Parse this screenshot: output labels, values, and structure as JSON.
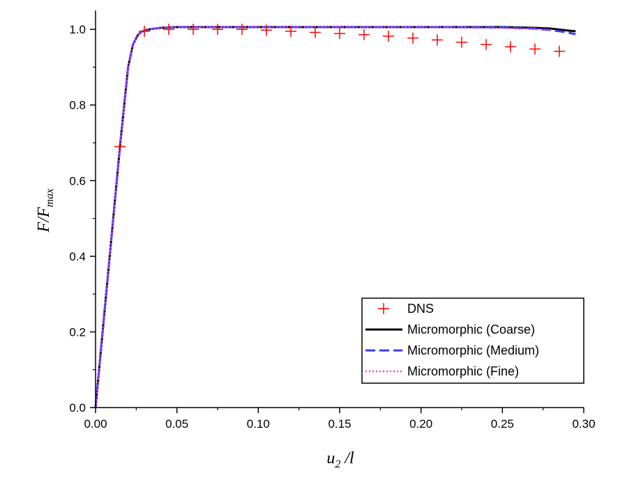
{
  "chart_data": {
    "type": "line",
    "title": "",
    "xlabel": {
      "main": "u",
      "sub": "2",
      "rest": " /l"
    },
    "ylabel": {
      "main": "F/F",
      "sub": "max"
    },
    "xlim": [
      0.0,
      0.3
    ],
    "ylim": [
      0.0,
      1.05
    ],
    "xticks": [
      "0.00",
      "0.05",
      "0.10",
      "0.15",
      "0.20",
      "0.25",
      "0.30"
    ],
    "yticks": [
      "0.0",
      "0.2",
      "0.4",
      "0.6",
      "0.8",
      "1.0"
    ],
    "grid": false,
    "legend_position": "bottom-right",
    "series": [
      {
        "name": "DNS",
        "style": "marker-plus",
        "color": "#ff0000",
        "x": [
          0.015,
          0.03,
          0.045,
          0.06,
          0.075,
          0.09,
          0.105,
          0.12,
          0.135,
          0.15,
          0.165,
          0.18,
          0.195,
          0.21,
          0.225,
          0.24,
          0.255,
          0.27,
          0.285
        ],
        "y": [
          0.69,
          0.995,
          1.0,
          1.0,
          1.0,
          1.0,
          0.998,
          0.995,
          0.992,
          0.989,
          0.986,
          0.982,
          0.977,
          0.972,
          0.966,
          0.96,
          0.954,
          0.948,
          0.942
        ]
      },
      {
        "name": "Micromorphic (Coarse)",
        "style": "solid",
        "color": "#000000",
        "x": [
          0.0,
          0.005,
          0.01,
          0.015,
          0.02,
          0.023,
          0.026,
          0.028,
          0.03,
          0.033,
          0.036,
          0.04,
          0.045,
          0.05,
          0.06,
          0.08,
          0.1,
          0.15,
          0.2,
          0.25,
          0.27,
          0.28,
          0.29,
          0.295
        ],
        "y": [
          0.0,
          0.23,
          0.46,
          0.69,
          0.9,
          0.96,
          0.985,
          0.993,
          0.997,
          1.0,
          1.002,
          1.004,
          1.005,
          1.006,
          1.006,
          1.006,
          1.006,
          1.006,
          1.006,
          1.006,
          1.004,
          1.002,
          0.997,
          0.995
        ]
      },
      {
        "name": "Micromorphic (Medium)",
        "style": "dashed",
        "color": "#3b3bff",
        "x": [
          0.0,
          0.005,
          0.01,
          0.015,
          0.02,
          0.023,
          0.026,
          0.028,
          0.03,
          0.033,
          0.036,
          0.04,
          0.045,
          0.05,
          0.06,
          0.08,
          0.1,
          0.15,
          0.2,
          0.25,
          0.27,
          0.28,
          0.29,
          0.295
        ],
        "y": [
          0.0,
          0.23,
          0.46,
          0.69,
          0.9,
          0.96,
          0.985,
          0.993,
          0.997,
          1.0,
          1.002,
          1.004,
          1.005,
          1.006,
          1.006,
          1.006,
          1.006,
          1.006,
          1.006,
          1.005,
          1.002,
          0.998,
          0.992,
          0.987
        ]
      },
      {
        "name": "Micromorphic (Fine)",
        "style": "dotted",
        "color": "#e83ae8",
        "x": [
          0.0,
          0.005,
          0.01,
          0.015,
          0.02,
          0.023,
          0.026,
          0.028,
          0.03,
          0.033,
          0.036,
          0.04,
          0.045,
          0.05,
          0.06,
          0.08,
          0.1,
          0.15,
          0.2,
          0.25,
          0.27,
          0.28
        ],
        "y": [
          0.0,
          0.23,
          0.46,
          0.69,
          0.9,
          0.96,
          0.985,
          0.993,
          0.997,
          1.0,
          1.002,
          1.004,
          1.005,
          1.006,
          1.006,
          1.006,
          1.006,
          1.006,
          1.006,
          1.004,
          1.001,
          0.998
        ]
      }
    ]
  }
}
